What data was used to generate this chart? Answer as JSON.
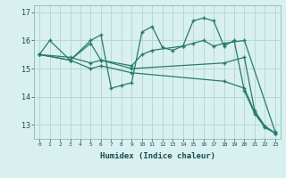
{
  "xlabel": "Humidex (Indice chaleur)",
  "bg_color": "#d8f0f0",
  "plot_bg_color": "#d8f0f0",
  "grid_color": "#b8d8d8",
  "line_color": "#2a7a6a",
  "xlim": [
    -0.5,
    23.5
  ],
  "ylim": [
    12.5,
    17.25
  ],
  "yticks": [
    13,
    14,
    15,
    16,
    17
  ],
  "xticks": [
    0,
    1,
    2,
    3,
    4,
    5,
    6,
    7,
    8,
    9,
    10,
    11,
    12,
    13,
    14,
    15,
    16,
    17,
    18,
    19,
    20,
    21,
    22,
    23
  ],
  "series": [
    {
      "x": [
        0,
        1,
        3,
        5,
        6,
        7,
        8,
        9,
        10,
        11,
        12,
        13,
        14,
        15,
        16,
        17,
        18,
        19,
        20,
        21,
        22,
        23
      ],
      "y": [
        15.5,
        16.0,
        15.3,
        16.0,
        16.2,
        14.3,
        14.4,
        14.5,
        16.3,
        16.5,
        15.75,
        15.65,
        15.8,
        16.7,
        16.8,
        16.7,
        15.8,
        16.0,
        14.2,
        13.4,
        12.9,
        12.7
      ]
    },
    {
      "x": [
        0,
        3,
        5,
        6,
        9,
        10,
        11,
        14,
        15,
        16,
        17,
        18,
        20,
        23
      ],
      "y": [
        15.5,
        15.3,
        15.9,
        15.3,
        15.1,
        15.5,
        15.65,
        15.8,
        15.9,
        16.0,
        15.8,
        15.9,
        16.0,
        12.75
      ]
    },
    {
      "x": [
        0,
        3,
        5,
        6,
        9,
        18,
        20,
        21,
        22,
        23
      ],
      "y": [
        15.5,
        15.4,
        15.2,
        15.3,
        15.0,
        15.2,
        15.4,
        13.5,
        12.95,
        12.7
      ]
    },
    {
      "x": [
        0,
        3,
        5,
        6,
        9,
        18,
        20,
        21,
        22,
        23
      ],
      "y": [
        15.5,
        15.3,
        15.0,
        15.1,
        14.85,
        14.55,
        14.3,
        13.45,
        12.95,
        12.7
      ]
    }
  ]
}
